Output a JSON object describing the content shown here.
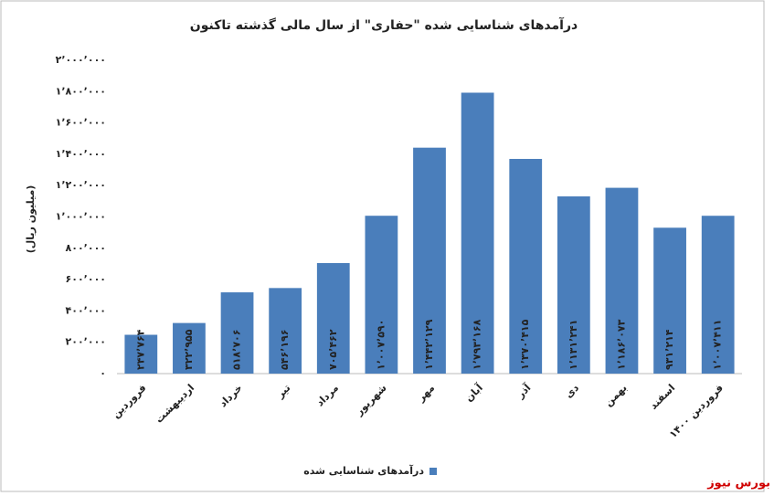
{
  "chart_data": {
    "type": "bar",
    "title": "درآمدهای شناسایی شده \"حفاری\" از سال مالی گذشته تاکنون",
    "y_label": "(میلیون ریال)",
    "categories": [
      "فروردین",
      "اردیبهشت",
      "خرداد",
      "تیر",
      "مرداد",
      "شهریور",
      "مهر",
      "آبان",
      "آذر",
      "دی",
      "بهمن",
      "اسفند",
      "فروردین ۱۴۰۰"
    ],
    "series": [
      {
        "name": "درآمدهای شناسایی شده",
        "color": "#4a7ebb",
        "values": [
          247764,
          322955,
          518706,
          546196,
          705462,
          1007590,
          1442129,
          1793168,
          1370415,
          1131241,
          1186073,
          931214,
          1007411
        ],
        "value_labels": [
          "۲۴۷٬۷۶۴",
          "۳۲۲٬۹۵۵",
          "۵۱۸٬۷۰۶",
          "۵۴۶٬۱۹۶",
          "۷۰۵٬۴۶۲",
          "۱٬۰۰۷٬۵۹۰",
          "۱٬۴۴۲٬۱۲۹",
          "۱٬۷۹۳٬۱۶۸",
          "۱٬۳۷۰٬۴۱۵",
          "۱٬۱۳۱٬۲۴۱",
          "۱٬۱۸۶٬۰۷۳",
          "۹۳۱٬۲۱۴",
          "۱٬۰۰۷٬۴۱۱"
        ]
      }
    ],
    "ylim": [
      0,
      2000000
    ],
    "yticks": [
      {
        "value": 0,
        "label": "۰"
      },
      {
        "value": 200000,
        "label": "۲۰۰٬۰۰۰"
      },
      {
        "value": 400000,
        "label": "۴۰۰٬۰۰۰"
      },
      {
        "value": 600000,
        "label": "۶۰۰٬۰۰۰"
      },
      {
        "value": 800000,
        "label": "۸۰۰٬۰۰۰"
      },
      {
        "value": 1000000,
        "label": "۱٬۰۰۰٬۰۰۰"
      },
      {
        "value": 1200000,
        "label": "۱٬۲۰۰٬۰۰۰"
      },
      {
        "value": 1400000,
        "label": "۱٬۴۰۰٬۰۰۰"
      },
      {
        "value": 1600000,
        "label": "۱٬۶۰۰٬۰۰۰"
      },
      {
        "value": 1800000,
        "label": "۱٬۸۰۰٬۰۰۰"
      },
      {
        "value": 2000000,
        "label": "۲٬۰۰۰٬۰۰۰"
      }
    ],
    "grid": false,
    "legend": "bottom",
    "source": "بورس نیوز"
  }
}
